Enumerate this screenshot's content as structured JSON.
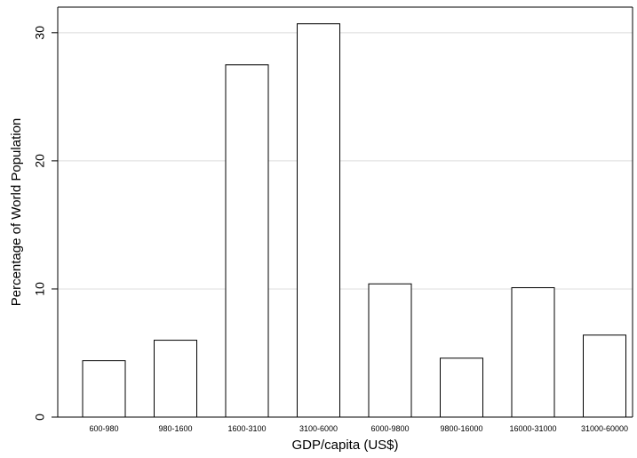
{
  "chart_data": {
    "type": "bar",
    "title": "",
    "xlabel": "GDP/capita (US$)",
    "ylabel": "Percentage of World Population",
    "categories": [
      "600-980",
      "980-1600",
      "1600-3100",
      "3100-6000",
      "6000-9800",
      "9800-16000",
      "16000-31000",
      "31000-60000"
    ],
    "values": [
      4.4,
      6.0,
      27.5,
      30.7,
      10.4,
      4.6,
      10.1,
      6.4
    ],
    "ylim": [
      0,
      32
    ],
    "yticks": [
      0,
      10,
      20,
      30
    ],
    "grid": "horizontal",
    "legend": "none",
    "colors": {
      "bar_fill": "#ffffff",
      "bar_stroke": "#000000",
      "grid": "#dcdcdc",
      "axis": "#000000"
    }
  }
}
